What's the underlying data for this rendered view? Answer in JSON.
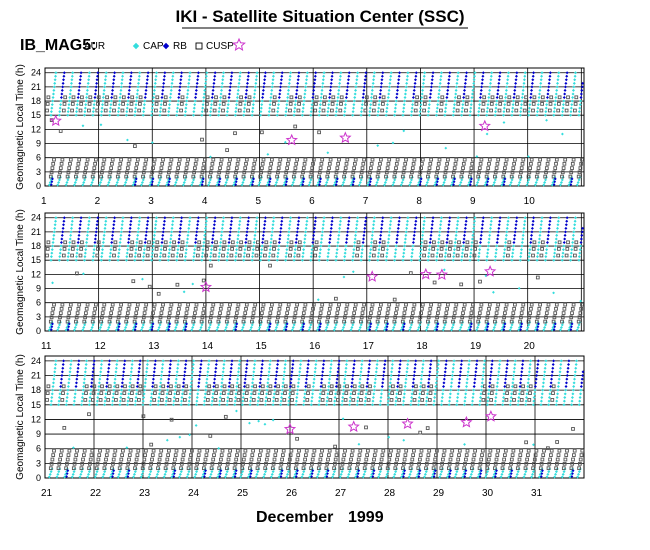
{
  "title": "IKI - Satellite Situation Center (SSC)",
  "instrument": "IB_MAG5:",
  "footer_month": "December",
  "footer_year": "1999",
  "chart_data": {
    "type": "scatter",
    "ylabel": "Geomagnetic Local Time (h)",
    "y_ticks": [
      "0",
      "3",
      "6",
      "9",
      "12",
      "15",
      "18",
      "21",
      "24"
    ],
    "ylim": [
      0,
      25
    ],
    "grid": true,
    "legend": [
      {
        "label": "AUR",
        "color": "#33dddd",
        "marker": "filled-diamond"
      },
      {
        "label": "CAP",
        "color": "#0000cc",
        "marker": "filled-diamond"
      },
      {
        "label": "RB",
        "color": "#555555",
        "marker": "open-square"
      },
      {
        "label": "CUSP",
        "color": "#cc33cc",
        "marker": "open-star"
      }
    ],
    "panels": [
      {
        "days": [
          "1",
          "2",
          "3",
          "4",
          "5",
          "6",
          "7",
          "8",
          "9",
          "10"
        ],
        "cusp_events": [
          {
            "day": 1.2,
            "glt": 13.8
          },
          {
            "day": 5.6,
            "glt": 9.7
          },
          {
            "day": 6.6,
            "glt": 10.2
          },
          {
            "day": 9.2,
            "glt": 12.7
          }
        ]
      },
      {
        "days": [
          "11",
          "12",
          "13",
          "14",
          "15",
          "16",
          "17",
          "18",
          "19",
          "20"
        ],
        "cusp_events": [
          {
            "day": 14.0,
            "glt": 9.3
          },
          {
            "day": 17.1,
            "glt": 11.5
          },
          {
            "day": 18.1,
            "glt": 12.0
          },
          {
            "day": 18.4,
            "glt": 11.9
          },
          {
            "day": 19.3,
            "glt": 12.6
          }
        ]
      },
      {
        "days": [
          "21",
          "22",
          "23",
          "24",
          "25",
          "26",
          "27",
          "28",
          "29",
          "30",
          "31"
        ],
        "cusp_events": [
          {
            "day": 26.0,
            "glt": 10.0
          },
          {
            "day": 27.3,
            "glt": 10.5
          },
          {
            "day": 28.4,
            "glt": 11.1
          },
          {
            "day": 29.6,
            "glt": 11.4
          },
          {
            "day": 30.1,
            "glt": 12.6
          }
        ]
      }
    ]
  }
}
